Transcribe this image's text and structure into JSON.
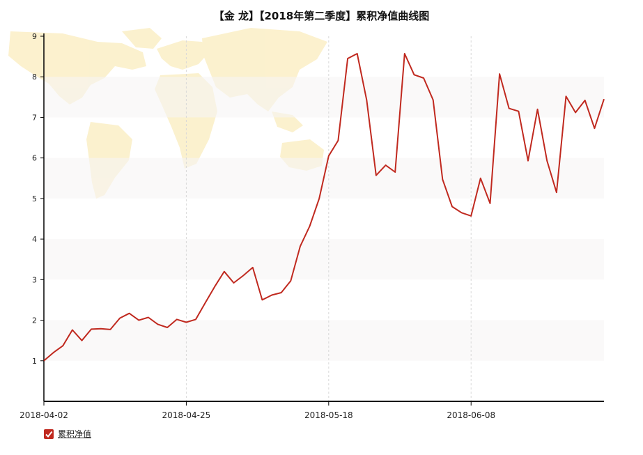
{
  "chart_data": {
    "type": "line",
    "title": "【金 龙】【2018年第二季度】累积净值曲线图",
    "xlabel": "",
    "ylabel": "",
    "ylim": [
      0,
      9
    ],
    "yticks": [
      1,
      2,
      3,
      4,
      5,
      6,
      7,
      8,
      9
    ],
    "xtick_labels": [
      "2018-04-02",
      "2018-04-25",
      "2018-05-18",
      "2018-06-08"
    ],
    "xtick_indices": [
      0,
      15,
      30,
      45
    ],
    "grid": true,
    "legend_position": "bottom-left",
    "series": [
      {
        "name": "累积净值",
        "color": "#c0291f",
        "values": [
          1.0,
          1.2,
          1.37,
          1.76,
          1.5,
          1.78,
          1.79,
          1.77,
          2.05,
          2.17,
          2.0,
          2.07,
          1.9,
          1.82,
          2.02,
          1.95,
          2.02,
          2.43,
          2.83,
          3.2,
          2.92,
          3.1,
          3.3,
          2.5,
          2.62,
          2.68,
          2.97,
          3.82,
          4.32,
          5.0,
          6.05,
          6.43,
          8.45,
          8.57,
          7.43,
          5.57,
          5.82,
          5.65,
          8.57,
          8.05,
          7.97,
          7.43,
          5.47,
          4.8,
          4.65,
          4.57,
          5.5,
          4.88,
          8.07,
          7.22,
          7.15,
          5.93,
          7.2,
          5.93,
          5.15,
          7.52,
          7.12,
          7.42,
          6.73,
          7.45
        ]
      }
    ]
  },
  "legend": {
    "label": "累积净值"
  },
  "colors": {
    "series": "#c0291f",
    "band": "#f6f5f5",
    "map": "#fbefc6",
    "axis": "#000000"
  }
}
